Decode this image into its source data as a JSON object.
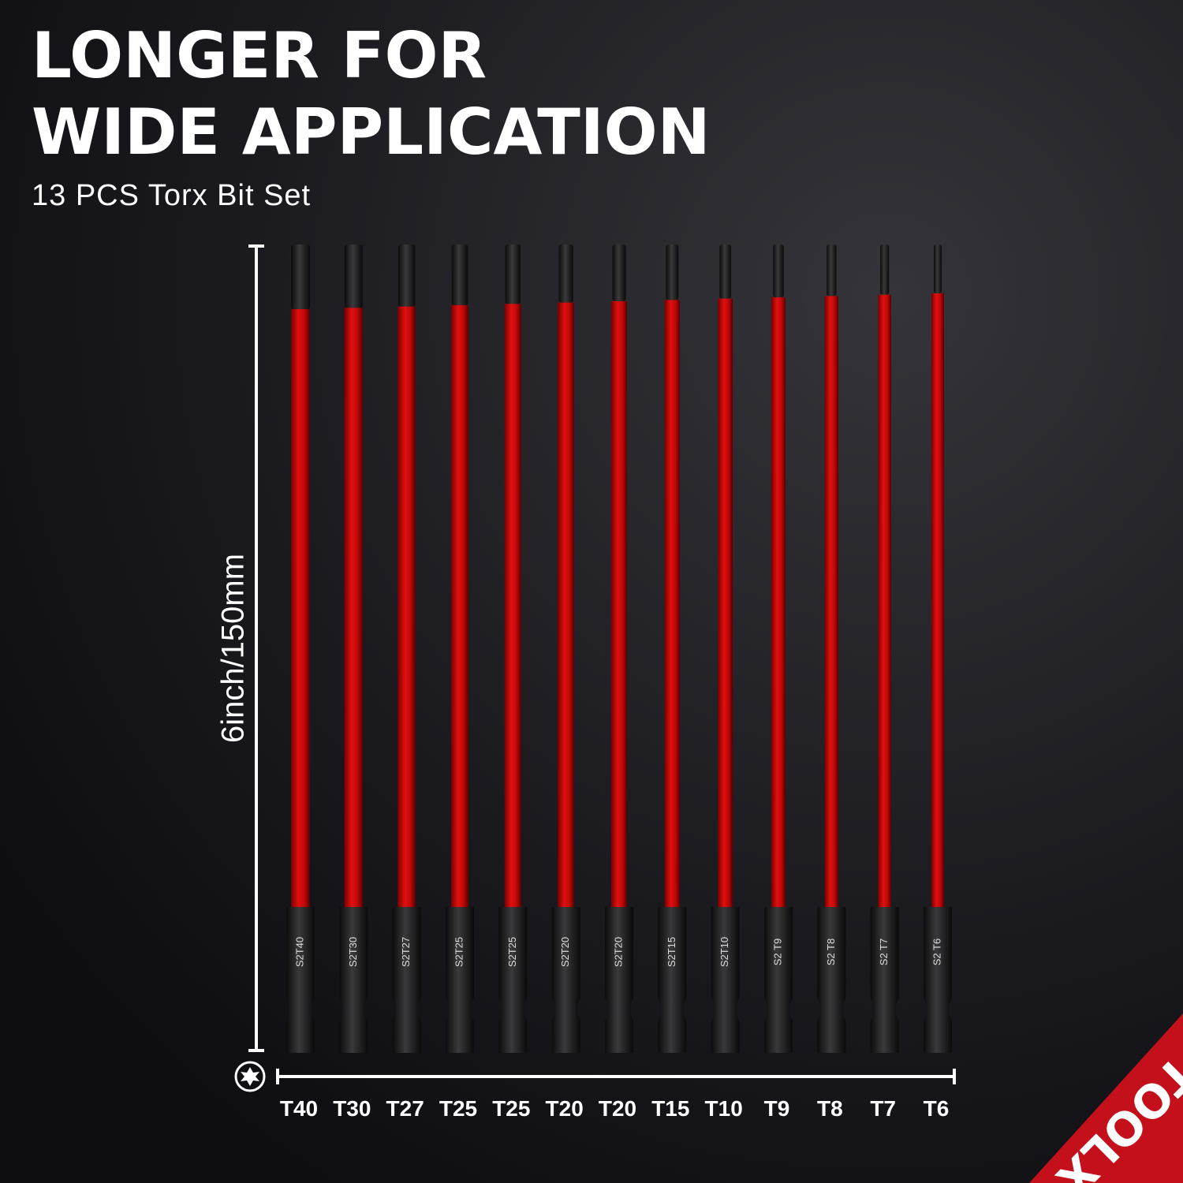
{
  "header": {
    "title_lines": [
      "LONGER FOR",
      "WIDE APPLICATION"
    ],
    "subtitle": "13 PCS Torx Bit Set"
  },
  "dimension": {
    "length_label": "6inch/150mm"
  },
  "bits": [
    {
      "size": "T40",
      "marking": "S2T40"
    },
    {
      "size": "T30",
      "marking": "S2T30"
    },
    {
      "size": "T27",
      "marking": "S2T27"
    },
    {
      "size": "T25",
      "marking": "S2T25"
    },
    {
      "size": "T25",
      "marking": "S2T25"
    },
    {
      "size": "T20",
      "marking": "S2T20"
    },
    {
      "size": "T20",
      "marking": "S2T20"
    },
    {
      "size": "T15",
      "marking": "S2T15"
    },
    {
      "size": "T10",
      "marking": "S2T10"
    },
    {
      "size": "T9",
      "marking": "S2 T9"
    },
    {
      "size": "T8",
      "marking": "S2 T8"
    },
    {
      "size": "T7",
      "marking": "S2 T7"
    },
    {
      "size": "T6",
      "marking": "S2 T6"
    }
  ],
  "brand": "TOOLX"
}
